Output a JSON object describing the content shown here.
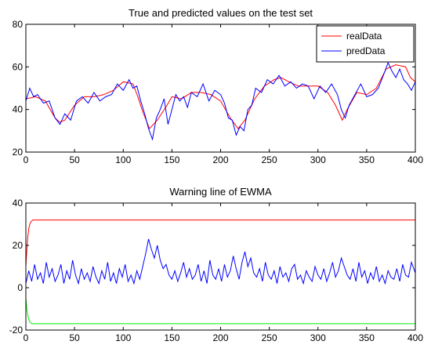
{
  "chart_data": [
    {
      "type": "line",
      "title": "True and predicted values on the test set",
      "xlabel": "",
      "ylabel": "",
      "xlim": [
        0,
        400
      ],
      "ylim": [
        20,
        80
      ],
      "xticks": [
        "0",
        "50",
        "100",
        "150",
        "200",
        "250",
        "300",
        "350",
        "400"
      ],
      "yticks": [
        "20",
        "40",
        "60",
        "80"
      ],
      "grid": false,
      "legend": "top-right",
      "series": [
        {
          "name": "realData",
          "color": "#ff0000",
          "x": [
            0,
            10,
            20,
            30,
            35,
            40,
            50,
            60,
            70,
            80,
            90,
            100,
            110,
            115,
            120,
            127,
            135,
            145,
            150,
            160,
            170,
            180,
            190,
            200,
            210,
            218,
            225,
            235,
            245,
            255,
            262,
            270,
            280,
            290,
            300,
            310,
            318,
            325,
            330,
            340,
            350,
            360,
            370,
            380,
            390,
            395,
            400
          ],
          "y": [
            45,
            46,
            44,
            36,
            34,
            35,
            42,
            46,
            46,
            47,
            49,
            53,
            52,
            46,
            39,
            31,
            35,
            42,
            46,
            45,
            48,
            48,
            47,
            44,
            36,
            31,
            35,
            45,
            51,
            54,
            55,
            53,
            51,
            51,
            51,
            48,
            42,
            35,
            40,
            48,
            47,
            50,
            59,
            61,
            60,
            55,
            53
          ]
        },
        {
          "name": "predData",
          "color": "#0000ff",
          "x": [
            0,
            4,
            8,
            12,
            18,
            24,
            30,
            35,
            40,
            46,
            52,
            58,
            64,
            70,
            76,
            82,
            88,
            94,
            100,
            106,
            110,
            114,
            118,
            122,
            126,
            130,
            134,
            138,
            142,
            146,
            150,
            154,
            158,
            162,
            166,
            170,
            176,
            182,
            188,
            194,
            200,
            204,
            208,
            212,
            216,
            220,
            224,
            228,
            232,
            236,
            242,
            248,
            254,
            260,
            266,
            272,
            278,
            284,
            290,
            296,
            302,
            308,
            314,
            320,
            324,
            328,
            332,
            338,
            344,
            350,
            356,
            362,
            368,
            372,
            376,
            380,
            384,
            388,
            392,
            396,
            400
          ],
          "y": [
            44,
            50,
            46,
            47,
            43,
            44,
            36,
            33,
            38,
            35,
            44,
            46,
            43,
            48,
            44,
            46,
            47,
            52,
            49,
            54,
            50,
            51,
            44,
            38,
            31,
            26,
            36,
            40,
            45,
            33,
            40,
            47,
            44,
            46,
            41,
            48,
            46,
            52,
            44,
            49,
            47,
            43,
            36,
            35,
            28,
            32,
            30,
            40,
            42,
            50,
            48,
            54,
            52,
            56,
            51,
            53,
            50,
            52,
            51,
            45,
            51,
            48,
            52,
            47,
            40,
            36,
            42,
            47,
            52,
            46,
            47,
            50,
            57,
            62,
            58,
            55,
            59,
            54,
            52,
            49,
            53
          ]
        }
      ]
    },
    {
      "type": "line",
      "title": "Warning line of EWMA",
      "xlabel": "",
      "ylabel": "",
      "xlim": [
        0,
        400
      ],
      "ylim": [
        -20,
        40
      ],
      "xticks": [
        "0",
        "50",
        "100",
        "150",
        "200",
        "250",
        "300",
        "350",
        "400"
      ],
      "yticks": [
        "-20",
        "0",
        "20",
        "40"
      ],
      "grid": false,
      "legend": "none",
      "series": [
        {
          "color": "#ff0000",
          "x": [
            0,
            1,
            2,
            3,
            4,
            5,
            6,
            7,
            8,
            9,
            10,
            400
          ],
          "y": [
            10,
            18,
            24,
            28,
            30,
            31,
            31.5,
            32,
            32,
            32,
            32,
            32
          ]
        },
        {
          "color": "#00ee00",
          "x": [
            0,
            1,
            2,
            3,
            4,
            5,
            6,
            7,
            8,
            9,
            10,
            400
          ],
          "y": [
            -5,
            -10,
            -13,
            -15,
            -16,
            -16.5,
            -17,
            -17,
            -17,
            -17,
            -17,
            -17
          ]
        },
        {
          "color": "#0000ff",
          "x": [
            0,
            3,
            6,
            9,
            12,
            15,
            18,
            21,
            24,
            27,
            30,
            33,
            36,
            39,
            42,
            45,
            48,
            51,
            54,
            57,
            60,
            63,
            66,
            69,
            72,
            75,
            78,
            81,
            84,
            87,
            90,
            93,
            96,
            99,
            102,
            105,
            108,
            111,
            114,
            117,
            120,
            123,
            126,
            129,
            132,
            135,
            138,
            141,
            144,
            147,
            150,
            153,
            156,
            159,
            162,
            165,
            168,
            171,
            174,
            177,
            180,
            183,
            186,
            189,
            192,
            195,
            198,
            201,
            204,
            207,
            210,
            213,
            216,
            219,
            222,
            225,
            228,
            231,
            234,
            237,
            240,
            243,
            246,
            249,
            252,
            255,
            258,
            261,
            264,
            267,
            270,
            273,
            276,
            279,
            282,
            285,
            288,
            291,
            294,
            297,
            300,
            303,
            306,
            309,
            312,
            315,
            318,
            321,
            324,
            327,
            330,
            333,
            336,
            339,
            342,
            345,
            348,
            351,
            354,
            357,
            360,
            363,
            366,
            369,
            372,
            375,
            378,
            381,
            384,
            387,
            390,
            393,
            396,
            400
          ],
          "y": [
            2,
            8,
            3,
            11,
            4,
            7,
            2,
            12,
            5,
            9,
            3,
            6,
            11,
            2,
            8,
            4,
            13,
            6,
            2,
            9,
            4,
            7,
            3,
            10,
            5,
            2,
            8,
            4,
            12,
            3,
            7,
            2,
            9,
            5,
            11,
            3,
            6,
            2,
            8,
            4,
            10,
            16,
            23,
            18,
            14,
            20,
            13,
            9,
            11,
            6,
            4,
            8,
            3,
            7,
            12,
            5,
            9,
            4,
            6,
            11,
            3,
            8,
            2,
            13,
            6,
            4,
            9,
            3,
            11,
            5,
            8,
            15,
            9,
            4,
            12,
            17,
            10,
            14,
            7,
            5,
            9,
            3,
            12,
            6,
            4,
            8,
            2,
            10,
            5,
            7,
            3,
            9,
            11,
            4,
            6,
            2,
            8,
            5,
            3,
            10,
            6,
            4,
            9,
            3,
            7,
            12,
            5,
            8,
            14,
            10,
            6,
            4,
            9,
            3,
            12,
            5,
            8,
            2,
            7,
            4,
            10,
            3,
            6,
            2,
            8,
            5,
            4,
            9,
            3,
            11,
            6,
            5,
            12,
            7
          ]
        }
      ]
    }
  ]
}
